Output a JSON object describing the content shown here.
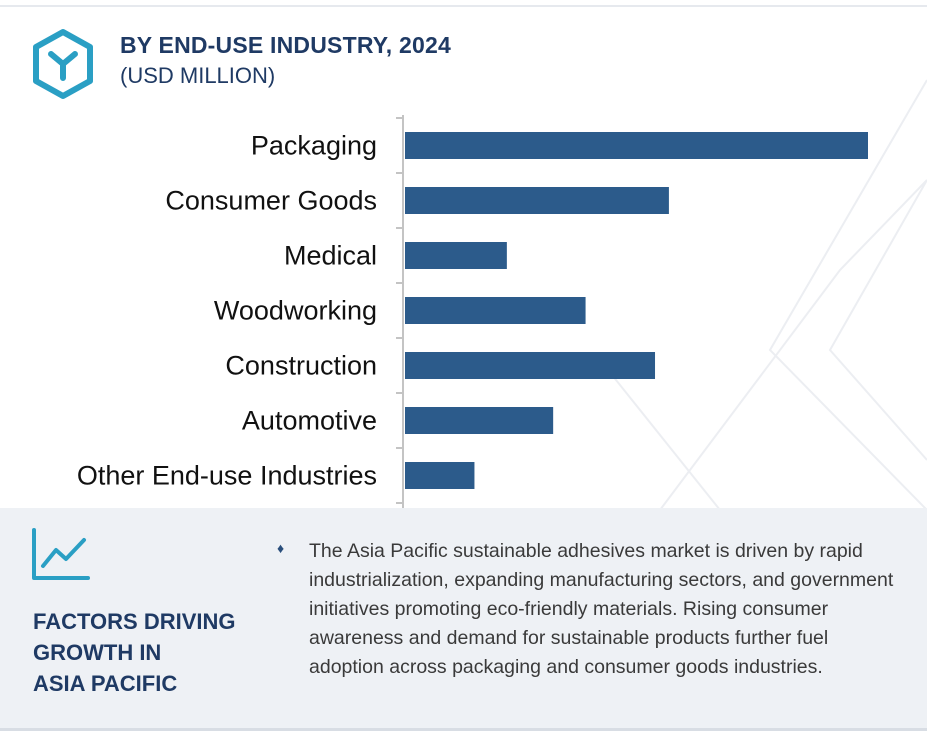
{
  "header": {
    "title": "BY END-USE INDUSTRY, 2024",
    "subtitle": "(USD MILLION)",
    "logo_icon": "cube-y-logo-icon"
  },
  "chart_data": {
    "type": "bar",
    "orientation": "horizontal",
    "categories": [
      "Packaging",
      "Consumer Goods",
      "Medical",
      "Woodworking",
      "Construction",
      "Automotive",
      "Other End-use Industries"
    ],
    "values": [
      100,
      57,
      22,
      39,
      54,
      32,
      15
    ],
    "series_color": "#2c5b8b",
    "xlim": [
      0,
      100
    ],
    "grid": false,
    "legend": "none"
  },
  "factors": {
    "icon": "line-chart-icon",
    "heading_lines": [
      "FACTORS DRIVING",
      "GROWTH IN",
      "ASIA PACIFIC"
    ],
    "bullet": "♦",
    "text": "The Asia Pacific sustainable adhesives market is driven by rapid industrialization, expanding manufacturing sectors, and government initiatives promoting eco-friendly materials. Rising consumer awareness and demand for sustainable products further fuel adoption across packaging and consumer goods industries."
  },
  "colors": {
    "accent": "#2a9fc4",
    "heading": "#1f3a64",
    "bar": "#2c5b8b",
    "panel": "#eef1f5"
  }
}
